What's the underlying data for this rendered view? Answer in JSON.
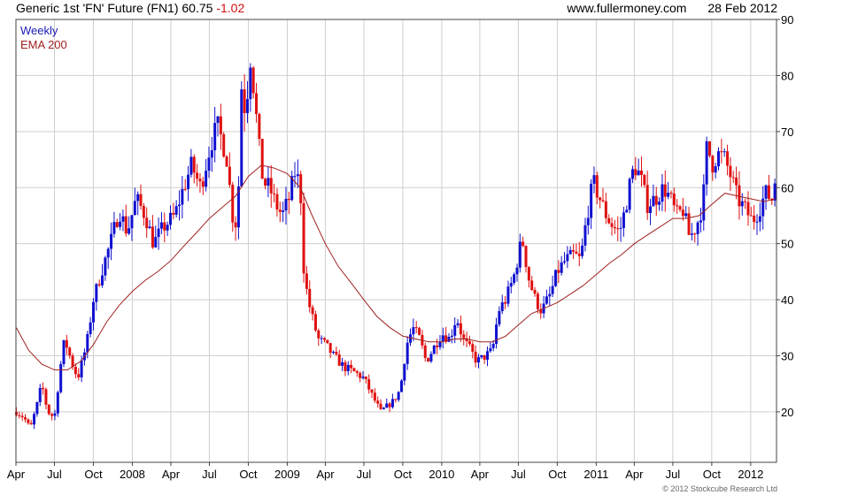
{
  "header": {
    "instrument": "Generic 1st 'FN' Future (FN1)",
    "last": "60.75",
    "change": "-1.02",
    "site": "www.fullermoney.com",
    "date": "28 Feb 2012"
  },
  "legend": {
    "weekly": "Weekly",
    "ema": "EMA 200"
  },
  "copyright": "© 2012 Stockcube Research Ltd",
  "colors": {
    "up": "#1010d0",
    "down": "#e01010",
    "ema": "#a02020",
    "grid": "#cfcfcf",
    "frame": "#444444"
  },
  "chart_data": {
    "type": "candlestick",
    "title": "Generic 1st 'FN' Future (FN1)",
    "frequency": "weekly",
    "ylim": [
      11,
      90
    ],
    "yticks": [
      20,
      30,
      40,
      50,
      60,
      70,
      80,
      90
    ],
    "xlim": [
      "2007-04-01",
      "2012-03-02"
    ],
    "xticks": [
      {
        "label": "Apr",
        "date": "2007-04-01"
      },
      {
        "label": "Jul",
        "date": "2007-07-01"
      },
      {
        "label": "Oct",
        "date": "2007-10-01"
      },
      {
        "label": "2008",
        "date": "2008-01-01"
      },
      {
        "label": "Apr",
        "date": "2008-04-01"
      },
      {
        "label": "Jul",
        "date": "2008-07-01"
      },
      {
        "label": "Oct",
        "date": "2008-10-01"
      },
      {
        "label": "2009",
        "date": "2009-01-01"
      },
      {
        "label": "Apr",
        "date": "2009-04-01"
      },
      {
        "label": "Jul",
        "date": "2009-07-01"
      },
      {
        "label": "Oct",
        "date": "2009-10-01"
      },
      {
        "label": "2010",
        "date": "2010-01-01"
      },
      {
        "label": "Apr",
        "date": "2010-04-01"
      },
      {
        "label": "Jul",
        "date": "2010-07-01"
      },
      {
        "label": "Oct",
        "date": "2010-10-01"
      },
      {
        "label": "2011",
        "date": "2011-01-01"
      },
      {
        "label": "Apr",
        "date": "2011-04-01"
      },
      {
        "label": "Jul",
        "date": "2011-07-01"
      },
      {
        "label": "Oct",
        "date": "2011-10-01"
      },
      {
        "label": "2012",
        "date": "2012-01-01"
      }
    ],
    "close_path": [
      [
        "2007-04-02",
        20
      ],
      [
        "2007-04-20",
        19
      ],
      [
        "2007-05-05",
        17
      ],
      [
        "2007-05-20",
        21
      ],
      [
        "2007-06-01",
        25
      ],
      [
        "2007-06-15",
        20
      ],
      [
        "2007-07-01",
        19
      ],
      [
        "2007-07-15",
        28
      ],
      [
        "2007-07-25",
        33
      ],
      [
        "2007-08-10",
        29
      ],
      [
        "2007-08-25",
        26
      ],
      [
        "2007-09-15",
        32
      ],
      [
        "2007-10-01",
        40
      ],
      [
        "2007-10-20",
        45
      ],
      [
        "2007-11-10",
        50
      ],
      [
        "2007-12-01",
        56
      ],
      [
        "2007-12-20",
        52
      ],
      [
        "2008-01-10",
        58
      ],
      [
        "2008-02-01",
        55
      ],
      [
        "2008-02-20",
        50
      ],
      [
        "2008-03-15",
        53
      ],
      [
        "2008-04-10",
        55
      ],
      [
        "2008-05-01",
        60
      ],
      [
        "2008-05-20",
        64
      ],
      [
        "2008-06-10",
        60
      ],
      [
        "2008-07-05",
        68
      ],
      [
        "2008-07-20",
        71
      ],
      [
        "2008-08-10",
        66
      ],
      [
        "2008-08-25",
        55
      ],
      [
        "2008-09-05",
        53
      ],
      [
        "2008-09-15",
        78
      ],
      [
        "2008-09-25",
        73
      ],
      [
        "2008-10-05",
        84
      ],
      [
        "2008-10-15",
        77
      ],
      [
        "2008-10-25",
        68
      ],
      [
        "2008-11-05",
        61
      ],
      [
        "2008-11-20",
        60
      ],
      [
        "2008-12-05",
        57
      ],
      [
        "2008-12-20",
        55
      ],
      [
        "2009-01-05",
        58
      ],
      [
        "2009-01-20",
        63
      ],
      [
        "2009-02-01",
        60
      ],
      [
        "2009-02-10",
        44
      ],
      [
        "2009-02-25",
        38
      ],
      [
        "2009-03-15",
        33
      ],
      [
        "2009-04-01",
        32
      ],
      [
        "2009-04-20",
        30
      ],
      [
        "2009-05-15",
        28
      ],
      [
        "2009-06-10",
        27
      ],
      [
        "2009-07-01",
        26
      ],
      [
        "2009-07-20",
        23
      ],
      [
        "2009-08-10",
        20
      ],
      [
        "2009-08-25",
        21
      ],
      [
        "2009-09-10",
        22
      ],
      [
        "2009-09-25",
        24
      ],
      [
        "2009-10-10",
        32
      ],
      [
        "2009-10-25",
        35
      ],
      [
        "2009-11-10",
        33
      ],
      [
        "2009-11-25",
        29
      ],
      [
        "2009-12-10",
        31
      ],
      [
        "2010-01-01",
        34
      ],
      [
        "2010-01-20",
        33
      ],
      [
        "2010-02-05",
        37
      ],
      [
        "2010-02-20",
        33
      ],
      [
        "2010-03-10",
        31
      ],
      [
        "2010-03-25",
        29
      ],
      [
        "2010-04-15",
        30
      ],
      [
        "2010-05-01",
        31
      ],
      [
        "2010-05-15",
        38
      ],
      [
        "2010-06-01",
        40
      ],
      [
        "2010-06-20",
        44
      ],
      [
        "2010-07-10",
        51
      ],
      [
        "2010-07-25",
        44
      ],
      [
        "2010-08-10",
        40
      ],
      [
        "2010-08-25",
        38
      ],
      [
        "2010-09-15",
        41
      ],
      [
        "2010-10-01",
        45
      ],
      [
        "2010-10-20",
        47
      ],
      [
        "2010-11-10",
        48
      ],
      [
        "2010-11-25",
        47
      ],
      [
        "2010-12-10",
        55
      ],
      [
        "2010-12-25",
        61
      ],
      [
        "2011-01-10",
        58
      ],
      [
        "2011-01-25",
        55
      ],
      [
        "2011-02-10",
        53
      ],
      [
        "2011-02-25",
        52
      ],
      [
        "2011-03-10",
        56
      ],
      [
        "2011-03-20",
        60
      ],
      [
        "2011-04-01",
        64
      ],
      [
        "2011-04-15",
        62
      ],
      [
        "2011-05-01",
        57
      ],
      [
        "2011-05-20",
        58
      ],
      [
        "2011-06-10",
        60
      ],
      [
        "2011-06-25",
        58
      ],
      [
        "2011-07-10",
        55
      ],
      [
        "2011-07-25",
        56
      ],
      [
        "2011-08-10",
        51
      ],
      [
        "2011-08-25",
        53
      ],
      [
        "2011-09-10",
        57
      ],
      [
        "2011-09-20",
        68
      ],
      [
        "2011-10-01",
        64
      ],
      [
        "2011-10-15",
        66
      ],
      [
        "2011-11-01",
        65
      ],
      [
        "2011-11-15",
        62
      ],
      [
        "2011-12-01",
        58
      ],
      [
        "2011-12-20",
        56
      ],
      [
        "2012-01-05",
        54
      ],
      [
        "2012-01-20",
        56
      ],
      [
        "2012-02-05",
        59
      ],
      [
        "2012-02-20",
        58
      ],
      [
        "2012-02-28",
        60.75
      ]
    ],
    "ema200_path": [
      [
        "2007-04-02",
        35
      ],
      [
        "2007-05-01",
        31
      ],
      [
        "2007-06-01",
        28.5
      ],
      [
        "2007-07-01",
        27.5
      ],
      [
        "2007-08-01",
        27.5
      ],
      [
        "2007-09-01",
        29
      ],
      [
        "2007-10-01",
        32
      ],
      [
        "2007-11-01",
        36
      ],
      [
        "2007-12-01",
        39
      ],
      [
        "2008-01-01",
        41.5
      ],
      [
        "2008-02-01",
        43.5
      ],
      [
        "2008-03-01",
        45
      ],
      [
        "2008-04-01",
        47
      ],
      [
        "2008-05-01",
        49.5
      ],
      [
        "2008-06-01",
        52
      ],
      [
        "2008-07-01",
        54.5
      ],
      [
        "2008-08-01",
        56.5
      ],
      [
        "2008-09-01",
        58.5
      ],
      [
        "2008-10-01",
        62
      ],
      [
        "2008-11-01",
        64
      ],
      [
        "2008-12-01",
        63.5
      ],
      [
        "2009-01-01",
        62.5
      ],
      [
        "2009-02-01",
        60
      ],
      [
        "2009-03-01",
        55
      ],
      [
        "2009-04-01",
        50
      ],
      [
        "2009-05-01",
        46
      ],
      [
        "2009-06-01",
        43
      ],
      [
        "2009-07-01",
        40
      ],
      [
        "2009-08-01",
        37
      ],
      [
        "2009-09-01",
        35
      ],
      [
        "2009-10-01",
        33.5
      ],
      [
        "2009-11-01",
        33
      ],
      [
        "2009-12-01",
        32.5
      ],
      [
        "2010-01-01",
        32.5
      ],
      [
        "2010-02-01",
        33
      ],
      [
        "2010-03-01",
        33
      ],
      [
        "2010-04-01",
        32.5
      ],
      [
        "2010-05-01",
        32.5
      ],
      [
        "2010-06-01",
        33.5
      ],
      [
        "2010-07-01",
        35.5
      ],
      [
        "2010-08-01",
        37.5
      ],
      [
        "2010-09-01",
        38.5
      ],
      [
        "2010-10-01",
        39.5
      ],
      [
        "2010-11-01",
        41
      ],
      [
        "2010-12-01",
        42.5
      ],
      [
        "2011-01-01",
        44.5
      ],
      [
        "2011-02-01",
        46.5
      ],
      [
        "2011-03-01",
        48
      ],
      [
        "2011-04-01",
        50
      ],
      [
        "2011-05-01",
        51.5
      ],
      [
        "2011-06-01",
        53
      ],
      [
        "2011-07-01",
        54.5
      ],
      [
        "2011-08-01",
        54.5
      ],
      [
        "2011-09-01",
        55
      ],
      [
        "2011-10-01",
        57
      ],
      [
        "2011-11-01",
        59
      ],
      [
        "2011-12-01",
        58.5
      ],
      [
        "2012-01-01",
        58
      ],
      [
        "2012-02-01",
        57.5
      ],
      [
        "2012-02-28",
        58
      ]
    ]
  }
}
